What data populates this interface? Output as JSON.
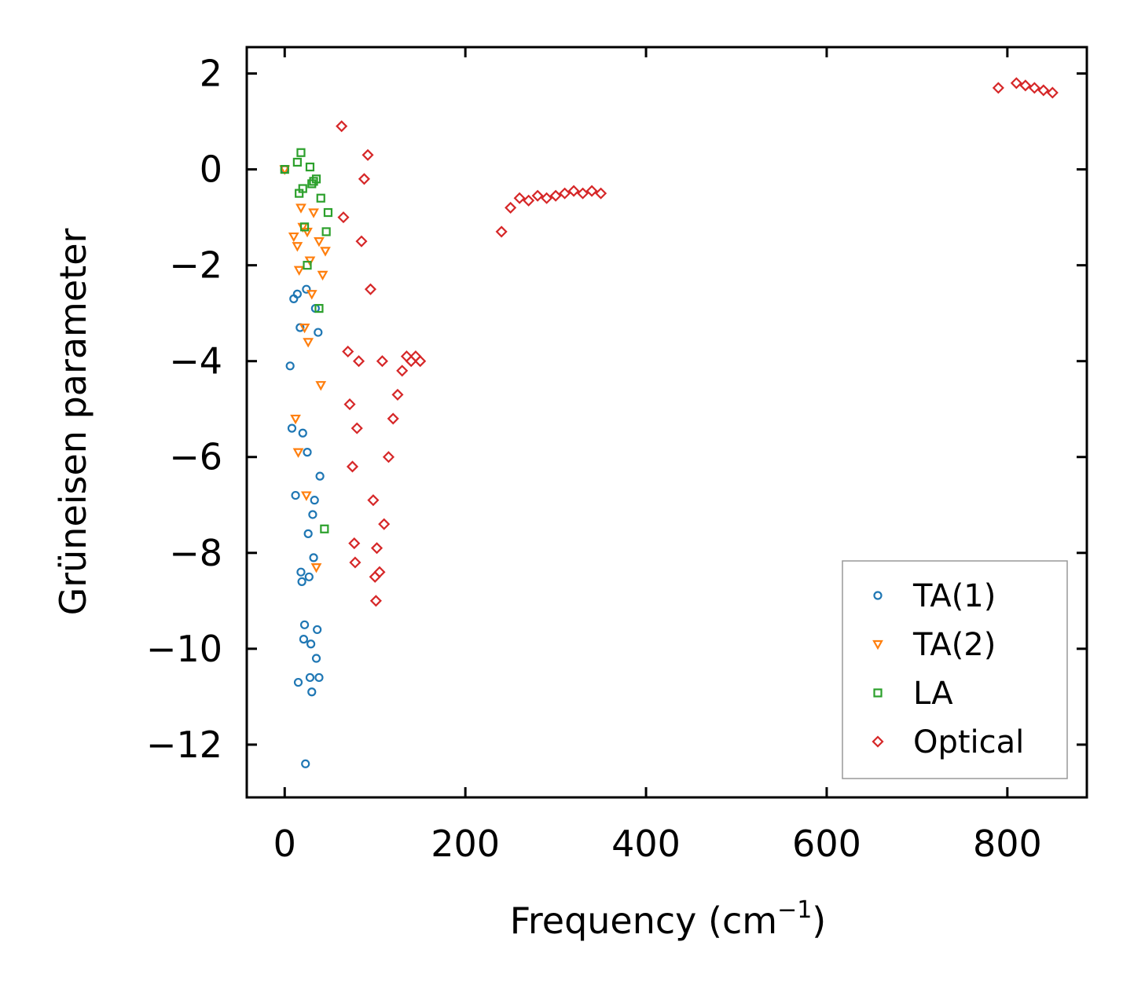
{
  "chart_data": {
    "type": "scatter",
    "xlabel": "Frequency (cm",
    "xlabel_sup": "−1",
    "xlabel_end": ")",
    "ylabel": "Grüneisen parameter",
    "xlim": [
      -42,
      888
    ],
    "ylim": [
      -13.1,
      2.55
    ],
    "xticks": [
      0,
      200,
      400,
      600,
      800
    ],
    "xtick_labels": [
      "0",
      "200",
      "400",
      "600",
      "800"
    ],
    "yticks": [
      2,
      0,
      -2,
      -4,
      -6,
      -8,
      -10,
      -12
    ],
    "ytick_labels": [
      "2",
      "0",
      "−2",
      "−4",
      "−6",
      "−8",
      "−10",
      "−12"
    ],
    "legend_position": "lower-right",
    "series": [
      {
        "name": "TA(1)",
        "marker": "circle",
        "color": "#1f77b4",
        "points": [
          [
            0,
            0
          ],
          [
            6,
            -4.1
          ],
          [
            8,
            -5.4
          ],
          [
            10,
            -2.7
          ],
          [
            12,
            -6.8
          ],
          [
            14,
            -2.6
          ],
          [
            15,
            -10.7
          ],
          [
            17,
            -3.3
          ],
          [
            18,
            -8.4
          ],
          [
            19,
            -8.6
          ],
          [
            20,
            -5.5
          ],
          [
            21,
            -9.8
          ],
          [
            22,
            -9.5
          ],
          [
            23,
            -12.4
          ],
          [
            24,
            -2.5
          ],
          [
            25,
            -5.9
          ],
          [
            26,
            -7.6
          ],
          [
            27,
            -8.5
          ],
          [
            28,
            -10.6
          ],
          [
            29,
            -9.9
          ],
          [
            30,
            -10.9
          ],
          [
            31,
            -7.2
          ],
          [
            32,
            -8.1
          ],
          [
            33,
            -6.9
          ],
          [
            34,
            -2.9
          ],
          [
            35,
            -10.2
          ],
          [
            36,
            -9.6
          ],
          [
            37,
            -3.4
          ],
          [
            38,
            -10.6
          ],
          [
            39,
            -6.4
          ]
        ]
      },
      {
        "name": "TA(2)",
        "marker": "triangle-down",
        "color": "#ff7f0e",
        "points": [
          [
            0,
            0
          ],
          [
            10,
            -1.4
          ],
          [
            12,
            -5.2
          ],
          [
            14,
            -1.6
          ],
          [
            15,
            -5.9
          ],
          [
            16,
            -2.1
          ],
          [
            18,
            -0.8
          ],
          [
            20,
            -1.2
          ],
          [
            22,
            -3.3
          ],
          [
            24,
            -6.8
          ],
          [
            25,
            -1.3
          ],
          [
            26,
            -3.6
          ],
          [
            28,
            -1.9
          ],
          [
            30,
            -2.6
          ],
          [
            32,
            -0.9
          ],
          [
            35,
            -8.3
          ],
          [
            38,
            -1.5
          ],
          [
            40,
            -4.5
          ],
          [
            42,
            -2.2
          ],
          [
            45,
            -1.7
          ]
        ]
      },
      {
        "name": "LA",
        "marker": "square",
        "color": "#2ca02c",
        "points": [
          [
            0,
            0
          ],
          [
            14,
            0.15
          ],
          [
            16,
            -0.5
          ],
          [
            18,
            0.35
          ],
          [
            20,
            -0.4
          ],
          [
            22,
            -1.2
          ],
          [
            25,
            -2.0
          ],
          [
            28,
            0.05
          ],
          [
            30,
            -0.3
          ],
          [
            32,
            -0.25
          ],
          [
            35,
            -0.2
          ],
          [
            38,
            -2.9
          ],
          [
            40,
            -0.6
          ],
          [
            44,
            -7.5
          ],
          [
            46,
            -1.3
          ],
          [
            48,
            -0.9
          ]
        ]
      },
      {
        "name": "Optical",
        "marker": "diamond",
        "color": "#d62728",
        "points": [
          [
            63,
            0.9
          ],
          [
            65,
            -1.0
          ],
          [
            70,
            -3.8
          ],
          [
            72,
            -4.9
          ],
          [
            75,
            -6.2
          ],
          [
            77,
            -7.8
          ],
          [
            78,
            -8.2
          ],
          [
            80,
            -5.4
          ],
          [
            82,
            -4.0
          ],
          [
            85,
            -1.5
          ],
          [
            88,
            -0.2
          ],
          [
            92,
            0.3
          ],
          [
            95,
            -2.5
          ],
          [
            98,
            -6.9
          ],
          [
            100,
            -8.5
          ],
          [
            101,
            -9.0
          ],
          [
            102,
            -7.9
          ],
          [
            105,
            -8.4
          ],
          [
            108,
            -4.0
          ],
          [
            110,
            -7.4
          ],
          [
            115,
            -6.0
          ],
          [
            120,
            -5.2
          ],
          [
            125,
            -4.7
          ],
          [
            130,
            -4.2
          ],
          [
            135,
            -3.9
          ],
          [
            140,
            -4.0
          ],
          [
            145,
            -3.9
          ],
          [
            150,
            -4.0
          ],
          [
            240,
            -1.3
          ],
          [
            250,
            -0.8
          ],
          [
            260,
            -0.6
          ],
          [
            270,
            -0.65
          ],
          [
            280,
            -0.55
          ],
          [
            290,
            -0.6
          ],
          [
            300,
            -0.55
          ],
          [
            310,
            -0.5
          ],
          [
            320,
            -0.45
          ],
          [
            330,
            -0.5
          ],
          [
            340,
            -0.45
          ],
          [
            350,
            -0.5
          ],
          [
            790,
            1.7
          ],
          [
            810,
            1.8
          ],
          [
            820,
            1.75
          ],
          [
            830,
            1.7
          ],
          [
            840,
            1.65
          ],
          [
            850,
            1.6
          ]
        ]
      }
    ]
  }
}
